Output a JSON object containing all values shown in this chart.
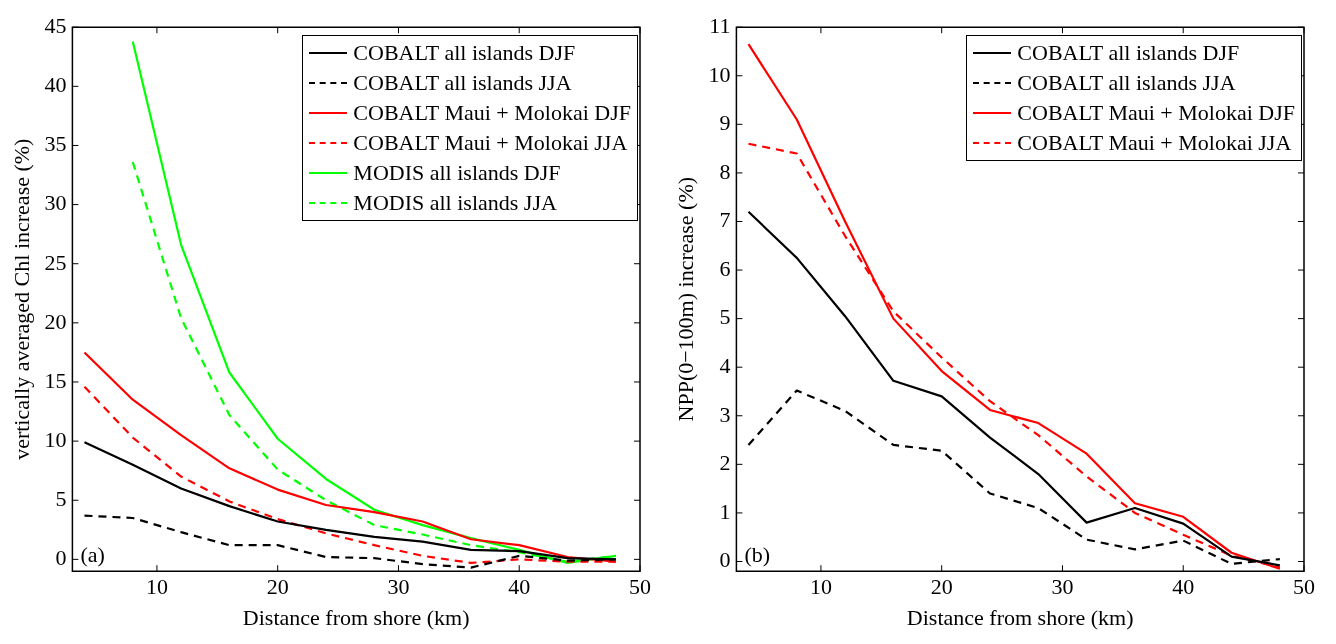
{
  "chart_data": [
    {
      "type": "line",
      "xlabel": "Distance from shore (km)",
      "ylabel": "vertically averaged Chl increase (%)",
      "x": [
        4,
        8,
        12,
        16,
        20,
        24,
        28,
        32,
        36,
        40,
        44,
        48
      ],
      "xlim": [
        3,
        50
      ],
      "xticks": [
        10,
        20,
        30,
        40,
        50
      ],
      "ylim": [
        -1,
        45
      ],
      "yticks": [
        0,
        5,
        10,
        15,
        20,
        25,
        30,
        35,
        40,
        45
      ],
      "legend": "top right",
      "annotations": [
        "(a)"
      ],
      "series": [
        {
          "name": "COBALT all islands DJF",
          "color": "#000000",
          "line_style": "solid",
          "values": [
            9.9,
            8.0,
            6.0,
            4.5,
            3.2,
            2.5,
            1.9,
            1.5,
            0.8,
            0.7,
            0.1,
            0.0
          ]
        },
        {
          "name": "COBALT all islands JJA",
          "color": "#000000",
          "line_style": "dashed",
          "values": [
            3.7,
            3.5,
            2.3,
            1.2,
            1.2,
            0.2,
            0.1,
            -0.4,
            -0.7,
            0.3,
            -0.1,
            0.0
          ]
        },
        {
          "name": "COBALT Maui + Molokai DJF",
          "color": "#ff0000",
          "line_style": "solid",
          "values": [
            17.5,
            13.5,
            10.5,
            7.7,
            5.9,
            4.6,
            4.0,
            3.2,
            1.7,
            1.2,
            0.2,
            -0.2
          ]
        },
        {
          "name": "COBALT Maui + Molokai JJA",
          "color": "#ff0000",
          "line_style": "dashed",
          "values": [
            14.6,
            10.3,
            7.0,
            4.9,
            3.4,
            2.2,
            1.2,
            0.3,
            -0.3,
            0.0,
            -0.2,
            -0.2
          ]
        },
        {
          "name": "MODIS all islands DJF",
          "color": "#00ff00",
          "line_style": "solid",
          "x": [
            8,
            12,
            16,
            20,
            24,
            28,
            32,
            36,
            40,
            44,
            48
          ],
          "values": [
            43.8,
            26.6,
            15.8,
            10.2,
            6.8,
            4.2,
            2.9,
            1.8,
            0.8,
            -0.3,
            0.3
          ]
        },
        {
          "name": "MODIS all islands JJA",
          "color": "#00ff00",
          "line_style": "dashed",
          "x": [
            8,
            12,
            16,
            20,
            24,
            28,
            32,
            36,
            40,
            44,
            48
          ],
          "values": [
            33.6,
            20.4,
            12.2,
            7.6,
            5.0,
            2.9,
            2.1,
            1.2,
            0.6,
            -0.2,
            0.3
          ]
        }
      ]
    },
    {
      "type": "line",
      "xlabel": "Distance from shore (km)",
      "ylabel": "NPP(0−100m) increase (%)",
      "x": [
        4,
        8,
        12,
        16,
        20,
        24,
        28,
        32,
        36,
        40,
        44,
        48
      ],
      "xlim": [
        3,
        50
      ],
      "xticks": [
        10,
        20,
        30,
        40,
        50
      ],
      "ylim": [
        -0.2,
        11
      ],
      "yticks": [
        0,
        1,
        2,
        3,
        4,
        5,
        6,
        7,
        8,
        9,
        10,
        11
      ],
      "legend": "top right",
      "annotations": [
        "(b)"
      ],
      "series": [
        {
          "name": "COBALT all islands DJF",
          "color": "#000000",
          "line_style": "solid",
          "values": [
            7.2,
            6.25,
            5.05,
            3.72,
            3.4,
            2.55,
            1.8,
            0.8,
            1.1,
            0.78,
            0.1,
            -0.08
          ]
        },
        {
          "name": "COBALT all islands JJA",
          "color": "#000000",
          "line_style": "dashed",
          "values": [
            2.4,
            3.52,
            3.1,
            2.4,
            2.28,
            1.4,
            1.1,
            0.45,
            0.25,
            0.43,
            -0.05,
            0.05
          ]
        },
        {
          "name": "COBALT Maui + Molokai DJF",
          "color": "#ff0000",
          "line_style": "solid",
          "values": [
            10.65,
            9.1,
            7.0,
            5.0,
            3.92,
            3.12,
            2.85,
            2.22,
            1.2,
            0.92,
            0.18,
            -0.15
          ]
        },
        {
          "name": "COBALT Maui + Molokai JJA",
          "color": "#ff0000",
          "line_style": "dashed",
          "values": [
            8.6,
            8.4,
            6.7,
            5.15,
            4.2,
            3.3,
            2.6,
            1.75,
            1.0,
            0.55,
            0.12,
            -0.12
          ]
        }
      ]
    }
  ]
}
